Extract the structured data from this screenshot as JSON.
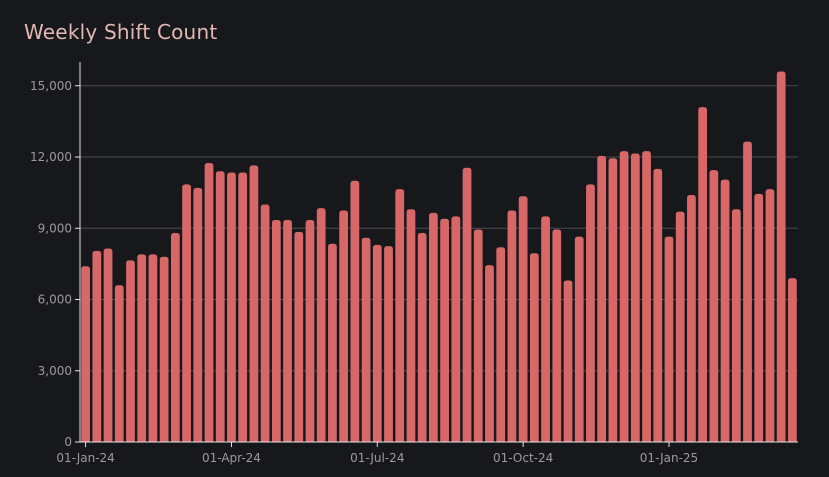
{
  "chart_data": {
    "type": "bar",
    "title": "Weekly Shift Count",
    "xlabel": "",
    "ylabel": "",
    "ylim": [
      0,
      16000
    ],
    "y_ticks": [
      0,
      3000,
      6000,
      9000,
      12000,
      15000
    ],
    "y_tick_labels": [
      "0",
      "3,000",
      "6,000",
      "9,000",
      "12,000",
      "15,000"
    ],
    "x_tick_labels": [
      "01-Jan-24",
      "01-Apr-24",
      "01-Jul-24",
      "01-Oct-24",
      "01-Jan-25"
    ],
    "x_tick_bar_index": [
      0,
      13,
      26,
      39,
      52
    ],
    "grid": "horizontal",
    "bar_color": "#d86868",
    "background": "#17181c",
    "grid_color": "#4a4b50",
    "axis_color": "#e5e5e5",
    "title_color": "#e3b7b3",
    "values": [
      7400,
      8050,
      8150,
      6600,
      7650,
      7900,
      7900,
      7800,
      8800,
      10850,
      10700,
      11750,
      11400,
      11350,
      11350,
      11650,
      10000,
      9350,
      9350,
      8850,
      9350,
      9850,
      8350,
      9750,
      11000,
      8600,
      8300,
      8250,
      10650,
      9800,
      8800,
      9650,
      9400,
      9500,
      11550,
      8950,
      7450,
      8200,
      9750,
      10350,
      7950,
      9500,
      8950,
      6800,
      8650,
      10850,
      12050,
      11950,
      12250,
      12150,
      12250,
      11500,
      8650,
      9700,
      10400,
      14100,
      11450,
      11050,
      9800,
      12650,
      10450,
      10650,
      15600,
      6900
    ]
  }
}
